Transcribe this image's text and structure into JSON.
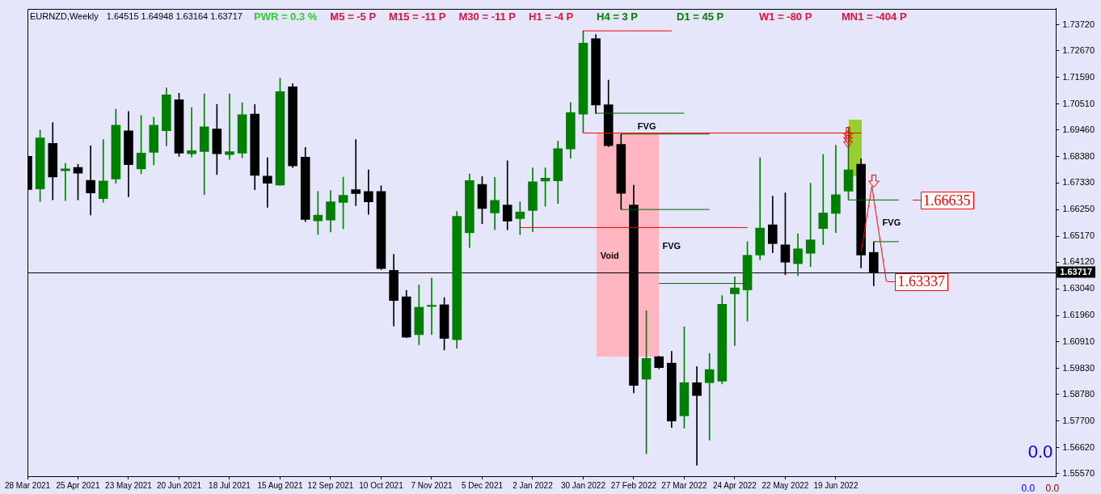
{
  "chart_data": {
    "type": "candlestick",
    "title": "EURNZD,Weekly",
    "subtitle": "1.64515 1.64948 1.63164 1.63717",
    "x": [
      "2021-03-28",
      "2021-04-04",
      "2021-04-11",
      "2021-04-18",
      "2021-04-25",
      "2021-05-02",
      "2021-05-09",
      "2021-05-16",
      "2021-05-23",
      "2021-05-30",
      "2021-06-06",
      "2021-06-13",
      "2021-06-20",
      "2021-06-27",
      "2021-07-04",
      "2021-07-11",
      "2021-07-18",
      "2021-07-25",
      "2021-08-01",
      "2021-08-08",
      "2021-08-15",
      "2021-08-22",
      "2021-08-29",
      "2021-09-05",
      "2021-09-12",
      "2021-09-19",
      "2021-09-26",
      "2021-10-03",
      "2021-10-10",
      "2021-10-17",
      "2021-10-24",
      "2021-10-31",
      "2021-11-07",
      "2021-11-14",
      "2021-11-21",
      "2021-11-28",
      "2021-12-05",
      "2021-12-12",
      "2021-12-19",
      "2021-12-26",
      "2022-01-02",
      "2022-01-09",
      "2022-01-16",
      "2022-01-23",
      "2022-01-30",
      "2022-02-06",
      "2022-02-13",
      "2022-02-20",
      "2022-02-27",
      "2022-03-06",
      "2022-03-13",
      "2022-03-20",
      "2022-03-27",
      "2022-04-03",
      "2022-04-10",
      "2022-04-17",
      "2022-04-24",
      "2022-05-01",
      "2022-05-08",
      "2022-05-15",
      "2022-05-22",
      "2022-05-29",
      "2022-06-05",
      "2022-06-12",
      "2022-06-19",
      "2022-06-26",
      "2022-07-03",
      "2022-07-10"
    ],
    "ohlc": [
      [
        1.684,
        1.6885,
        1.6695,
        1.6706
      ],
      [
        1.6708,
        1.6946,
        1.6657,
        1.6914
      ],
      [
        1.6892,
        1.6976,
        1.6664,
        1.6756
      ],
      [
        1.6782,
        1.6811,
        1.6661,
        1.6789
      ],
      [
        1.6795,
        1.6808,
        1.6664,
        1.6772
      ],
      [
        1.6743,
        1.6882,
        1.6603,
        1.6692
      ],
      [
        1.6669,
        1.6908,
        1.6654,
        1.674
      ],
      [
        1.6748,
        1.703,
        1.6731,
        1.6966
      ],
      [
        1.6943,
        1.7021,
        1.6676,
        1.6806
      ],
      [
        1.6789,
        1.7005,
        1.6769,
        1.6853
      ],
      [
        1.6856,
        1.6998,
        1.6805,
        1.6966
      ],
      [
        1.6943,
        1.7117,
        1.6882,
        1.7088
      ],
      [
        1.7069,
        1.7095,
        1.684,
        1.6853
      ],
      [
        1.685,
        1.7037,
        1.6837,
        1.6863
      ],
      [
        1.6859,
        1.7092,
        1.6685,
        1.6959
      ],
      [
        1.695,
        1.705,
        1.6766,
        1.685
      ],
      [
        1.6847,
        1.7092,
        1.6827,
        1.6859
      ],
      [
        1.6853,
        1.7056,
        1.6834,
        1.7008
      ],
      [
        1.7011,
        1.705,
        1.6705,
        1.6763
      ],
      [
        1.676,
        1.6834,
        1.6634,
        1.6731
      ],
      [
        1.6724,
        1.7156,
        1.6722,
        1.7101
      ],
      [
        1.7121,
        1.7133,
        1.6795,
        1.6801
      ],
      [
        1.6837,
        1.6876,
        1.6576,
        1.6585
      ],
      [
        1.6579,
        1.6698,
        1.6524,
        1.6602
      ],
      [
        1.6582,
        1.6702,
        1.6534,
        1.6656
      ],
      [
        1.6653,
        1.6756,
        1.6547,
        1.6682
      ],
      [
        1.6705,
        1.6908,
        1.664,
        1.6689
      ],
      [
        1.6698,
        1.6785,
        1.6605,
        1.6656
      ],
      [
        1.6698,
        1.6721,
        1.6382,
        1.6386
      ],
      [
        1.6379,
        1.6444,
        1.6154,
        1.6257
      ],
      [
        1.6272,
        1.6298,
        1.6107,
        1.6109
      ],
      [
        1.6119,
        1.632,
        1.6078,
        1.623
      ],
      [
        1.6233,
        1.6347,
        1.6119,
        1.6238
      ],
      [
        1.624,
        1.6269,
        1.6057,
        1.6104
      ],
      [
        1.6099,
        1.6617,
        1.6064,
        1.6597
      ],
      [
        1.6531,
        1.6769,
        1.6471,
        1.6742
      ],
      [
        1.6726,
        1.6758,
        1.6567,
        1.6629
      ],
      [
        1.6611,
        1.6755,
        1.6543,
        1.6662
      ],
      [
        1.6643,
        1.6822,
        1.6543,
        1.6578
      ],
      [
        1.6588,
        1.6656,
        1.6523,
        1.6615
      ],
      [
        1.6621,
        1.6793,
        1.6535,
        1.6737
      ],
      [
        1.674,
        1.6793,
        1.6638,
        1.6752
      ],
      [
        1.6741,
        1.6901,
        1.6649,
        1.6871
      ],
      [
        1.687,
        1.7057,
        1.6832,
        1.7016
      ],
      [
        1.701,
        1.7347,
        1.6934,
        1.7297
      ],
      [
        1.7315,
        1.7332,
        1.7013,
        1.7047
      ],
      [
        1.7048,
        1.7148,
        1.6879,
        1.6883
      ],
      [
        1.6888,
        1.693,
        1.6625,
        1.669
      ],
      [
        1.6643,
        1.6723,
        1.5884,
        1.5914
      ],
      [
        1.5939,
        1.6216,
        1.5638,
        1.6023
      ],
      [
        1.603,
        1.6032,
        1.5981,
        1.5986
      ],
      [
        1.6004,
        1.6052,
        1.5744,
        1.577
      ],
      [
        1.5791,
        1.6151,
        1.5741,
        1.5925
      ],
      [
        1.5925,
        1.599,
        1.5591,
        1.5873
      ],
      [
        1.5925,
        1.6043,
        1.5693,
        1.5978
      ],
      [
        1.5931,
        1.6277,
        1.592,
        1.6242
      ],
      [
        1.6284,
        1.6353,
        1.6075,
        1.6308
      ],
      [
        1.63,
        1.6495,
        1.6174,
        1.644
      ],
      [
        1.6441,
        1.6834,
        1.6422,
        1.655
      ],
      [
        1.6563,
        1.6679,
        1.645,
        1.6487
      ],
      [
        1.6482,
        1.6692,
        1.6361,
        1.6412
      ],
      [
        1.6406,
        1.6527,
        1.6358,
        1.6466
      ],
      [
        1.6448,
        1.6731,
        1.6394,
        1.6502
      ],
      [
        1.6548,
        1.6847,
        1.6483,
        1.6611
      ],
      [
        1.6609,
        1.6885,
        1.6532,
        1.6685
      ],
      [
        1.6699,
        1.6958,
        1.6664,
        1.6785
      ],
      [
        1.6808,
        1.683,
        1.6389,
        1.6441
      ],
      [
        1.64515,
        1.64948,
        1.63164,
        1.63717
      ]
    ],
    "colors": [
      "#000000",
      "#008000",
      "#000000",
      "#008000",
      "#000000",
      "#000000",
      "#008000",
      "#008000",
      "#000000",
      "#008000",
      "#008000",
      "#008000",
      "#000000",
      "#008000",
      "#008000",
      "#000000",
      "#008000",
      "#008000",
      "#000000",
      "#000000",
      "#008000",
      "#000000",
      "#000000",
      "#008000",
      "#008000",
      "#008000",
      "#000000",
      "#000000",
      "#000000",
      "#000000",
      "#000000",
      "#008000",
      "#008000",
      "#000000",
      "#008000",
      "#008000",
      "#000000",
      "#008000",
      "#000000",
      "#008000",
      "#008000",
      "#008000",
      "#008000",
      "#008000",
      "#008000",
      "#000000",
      "#000000",
      "#000000",
      "#000000",
      "#008000",
      "#000000",
      "#000000",
      "#008000",
      "#000000",
      "#008000",
      "#008000",
      "#008000",
      "#008000",
      "#008000",
      "#000000",
      "#000000",
      "#008000",
      "#008000",
      "#008000",
      "#008000",
      "#008000",
      "#000000",
      "#000000"
    ],
    "series": [
      {
        "type": "line",
        "x": [
          "2022-01-30",
          "2022-03-20"
        ],
        "values": [
          1.7347,
          1.7347
        ],
        "color": "#ff0000"
      },
      {
        "type": "line",
        "x": [
          "2022-02-06",
          "2022-03-27"
        ],
        "values": [
          1.7014,
          1.7014
        ],
        "color": "#006400"
      },
      {
        "type": "line",
        "x": [
          "2022-01-30",
          "2022-07-03"
        ],
        "values": [
          1.6934,
          1.6934
        ],
        "color": "#ff0000"
      },
      {
        "type": "line",
        "x": [
          "2022-02-20",
          "2022-04-10"
        ],
        "values": [
          1.693,
          1.693
        ],
        "color": "#006400"
      },
      {
        "type": "line",
        "x": [
          "2022-02-20",
          "2022-04-10"
        ],
        "values": [
          1.6625,
          1.6625
        ],
        "color": "#006400"
      },
      {
        "type": "line",
        "x": [
          "2021-12-26",
          "2022-05-01"
        ],
        "values": [
          1.6552,
          1.6552
        ],
        "color": "#ff0000"
      },
      {
        "type": "line",
        "x": [
          "2022-03-13",
          "2022-05-01"
        ],
        "values": [
          1.6326,
          1.6326
        ],
        "color": "#006400"
      },
      {
        "type": "line",
        "x": [
          "2022-06-26",
          "2022-07-24"
        ],
        "values": [
          1.66635,
          1.66635
        ],
        "color": "#006400"
      },
      {
        "type": "line",
        "x": [
          "2022-07-10",
          "2022-07-24"
        ],
        "values": [
          1.6495,
          1.6495
        ],
        "color": "#006400"
      },
      {
        "type": "line",
        "x": [
          "2022-07-03",
          "2022-07-09",
          "2022-07-17"
        ],
        "values": [
          1.6455,
          1.6719,
          1.63337
        ],
        "color": "#ff0000"
      }
    ],
    "xlim": [
      "2021-03-28",
      "2022-10-19"
    ],
    "xticks": [
      {
        "value": "2021-03-28",
        "label": "28 Mar 2021"
      },
      {
        "value": "2021-04-25",
        "label": "25 Apr 2021"
      },
      {
        "value": "2021-05-23",
        "label": "23 May 2021"
      },
      {
        "value": "2021-06-20",
        "label": "20 Jun 2021"
      },
      {
        "value": "2021-07-18",
        "label": "18 Jul 2021"
      },
      {
        "value": "2021-08-15",
        "label": "15 Aug 2021"
      },
      {
        "value": "2021-09-12",
        "label": "12 Sep 2021"
      },
      {
        "value": "2021-10-10",
        "label": "10 Oct 2021"
      },
      {
        "value": "2021-11-07",
        "label": "7 Nov 2021"
      },
      {
        "value": "2021-12-05",
        "label": "5 Dec 2021"
      },
      {
        "value": "2022-01-02",
        "label": "2 Jan 2022"
      },
      {
        "value": "2022-01-30",
        "label": "30 Jan 2022"
      },
      {
        "value": "2022-02-27",
        "label": "27 Feb 2022"
      },
      {
        "value": "2022-03-27",
        "label": "27 Mar 2022"
      },
      {
        "value": "2022-04-24",
        "label": "24 Apr 2022"
      },
      {
        "value": "2022-05-22",
        "label": "22 May 2022"
      },
      {
        "value": "2022-06-19",
        "label": "19 Jun 2022"
      }
    ],
    "ylim": [
      1.5547,
      1.7437
    ],
    "yticks": [
      {
        "value": 1.5557,
        "label": "1.55570"
      },
      {
        "value": 1.5662,
        "label": "1.56620"
      },
      {
        "value": 1.577,
        "label": "1.57700"
      },
      {
        "value": 1.5878,
        "label": "1.58780"
      },
      {
        "value": 1.5983,
        "label": "1.59830"
      },
      {
        "value": 1.6091,
        "label": "1.60910"
      },
      {
        "value": 1.6196,
        "label": "1.61960"
      },
      {
        "value": 1.6304,
        "label": "1.63040"
      },
      {
        "value": 1.6412,
        "label": "1.64120"
      },
      {
        "value": 1.6517,
        "label": "1.65170"
      },
      {
        "value": 1.6625,
        "label": "1.66250"
      },
      {
        "value": 1.6733,
        "label": "1.67330"
      },
      {
        "value": 1.6838,
        "label": "1.68380"
      },
      {
        "value": 1.6946,
        "label": "1.69460"
      },
      {
        "value": 1.7051,
        "label": "1.70510"
      },
      {
        "value": 1.7159,
        "label": "1.71590"
      },
      {
        "value": 1.7267,
        "label": "1.72670"
      },
      {
        "value": 1.7372,
        "label": "1.73720"
      }
    ],
    "ref_lines": [
      {
        "axis": "y",
        "value": 1.63717,
        "label": "1.63717",
        "color": "#000000"
      }
    ],
    "annotations": [
      "PWR = 0.3 %",
      "M5 = -5 P",
      "M15 = -11 P",
      "M30 = -11 P",
      "H1 = -4 P",
      "H4 = 3 P",
      "D1 = 45 P",
      "W1 = -80 P",
      "MN1 = -404 P",
      "FVG",
      "FVG",
      "FVG",
      "Void",
      "0.0",
      "0.0",
      "0.0",
      {
        "text": "1.66635",
        "x": "2022-07-24",
        "y": 1.66635
      },
      {
        "text": "1.63337",
        "x": "2022-07-17",
        "y": 1.63337
      }
    ]
  }
}
